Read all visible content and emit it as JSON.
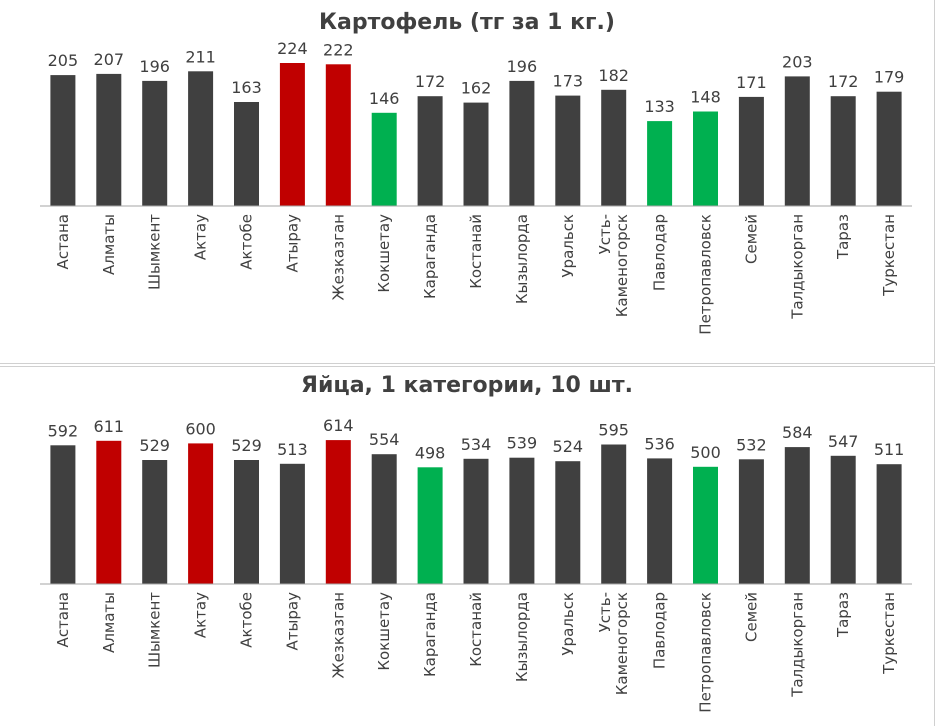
{
  "colors": {
    "default": "#404040",
    "high": "#c00000",
    "low": "#00b050",
    "axis": "#a6a6a6",
    "label": "#404040"
  },
  "chart_data": [
    {
      "type": "bar",
      "title": "Картофель (тг за 1 кг.)",
      "categories": [
        "Астана",
        "Алматы",
        "Шымкент",
        "Актау",
        "Актобе",
        "Атырау",
        "Жезказган",
        "Кокшетау",
        "Караганда",
        "Костанай",
        "Кызылорда",
        "Уральск",
        "Усть-Каменогорск",
        "Павлодар",
        "Петропавловск",
        "Семей",
        "Талдыкорган",
        "Тараз",
        "Туркестан"
      ],
      "category_lines": [
        [
          "Астана"
        ],
        [
          "Алматы"
        ],
        [
          "Шымкент"
        ],
        [
          "Актау"
        ],
        [
          "Актобе"
        ],
        [
          "Атырау"
        ],
        [
          "Жезказган"
        ],
        [
          "Кокшетау"
        ],
        [
          "Караганда"
        ],
        [
          "Костанай"
        ],
        [
          "Кызылорда"
        ],
        [
          "Уральск"
        ],
        [
          "Усть-",
          "Каменогорск"
        ],
        [
          "Павлодар"
        ],
        [
          "Петропавловск"
        ],
        [
          "Семей"
        ],
        [
          "Талдыкорган"
        ],
        [
          "Тараз"
        ],
        [
          "Туркестан"
        ]
      ],
      "values": [
        205,
        207,
        196,
        211,
        163,
        224,
        222,
        146,
        172,
        162,
        196,
        173,
        182,
        133,
        148,
        171,
        203,
        172,
        179
      ],
      "highlight": [
        "default",
        "default",
        "default",
        "default",
        "default",
        "high",
        "high",
        "low",
        "default",
        "default",
        "default",
        "default",
        "default",
        "low",
        "low",
        "default",
        "default",
        "default",
        "default"
      ],
      "ylim": [
        0,
        235
      ],
      "data_labels": true,
      "grid": false
    },
    {
      "type": "bar",
      "title": "Яйца, 1 категории, 10 шт.",
      "categories": [
        "Астана",
        "Алматы",
        "Шымкент",
        "Актау",
        "Актобе",
        "Атырау",
        "Жезказган",
        "Кокшетау",
        "Караганда",
        "Костанай",
        "Кызылорда",
        "Уральск",
        "Усть-Каменогорск",
        "Павлодар",
        "Петропавловск",
        "Семей",
        "Талдыкорган",
        "Тараз",
        "Туркестан"
      ],
      "category_lines": [
        [
          "Астана"
        ],
        [
          "Алматы"
        ],
        [
          "Шымкент"
        ],
        [
          "Актау"
        ],
        [
          "Актобе"
        ],
        [
          "Атырау"
        ],
        [
          "Жезказган"
        ],
        [
          "Кокшетау"
        ],
        [
          "Караганда"
        ],
        [
          "Костанай"
        ],
        [
          "Кызылорда"
        ],
        [
          "Уральск"
        ],
        [
          "Усть-",
          "Каменогорск"
        ],
        [
          "Павлодар"
        ],
        [
          "Петропавловск"
        ],
        [
          "Семей"
        ],
        [
          "Талдыкорган"
        ],
        [
          "Тараз"
        ],
        [
          "Туркестан"
        ]
      ],
      "values": [
        592,
        611,
        529,
        600,
        529,
        513,
        614,
        554,
        498,
        534,
        539,
        524,
        595,
        536,
        500,
        532,
        584,
        547,
        511
      ],
      "highlight": [
        "default",
        "high",
        "default",
        "high",
        "default",
        "default",
        "high",
        "default",
        "low",
        "default",
        "default",
        "default",
        "default",
        "default",
        "low",
        "default",
        "default",
        "default",
        "default"
      ],
      "ylim": [
        0,
        640
      ],
      "data_labels": true,
      "grid": false
    }
  ]
}
